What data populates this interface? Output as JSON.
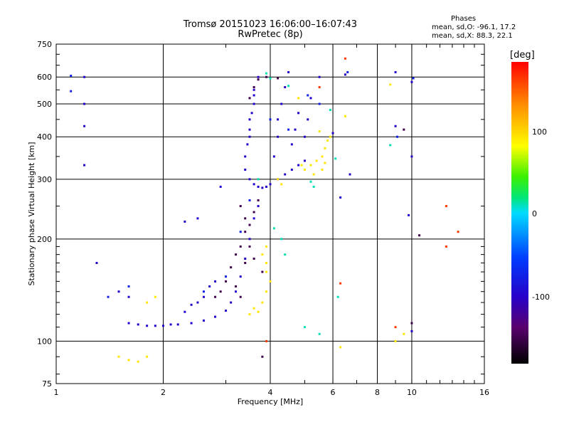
{
  "header": {
    "title": "Tromsø 20151023 16:06:00–16:07:43",
    "subtitle": "RwPretec (8p)",
    "phases_title": "Phases",
    "phases_o": "mean, sd,O: -96.1, 17.2",
    "phases_x": "mean, sd,X: 88.3, 22.1"
  },
  "chart_data": {
    "type": "scatter",
    "xlabel": "Frequency [MHz]",
    "ylabel": "Stationary phase Virtual Height [km]",
    "xscale": "log",
    "yscale": "log",
    "xlim": [
      1,
      16
    ],
    "ylim": [
      75,
      750
    ],
    "xticks": [
      1,
      2,
      4,
      6,
      8,
      10,
      16
    ],
    "yticks": [
      75,
      100,
      200,
      300,
      400,
      500,
      600,
      750
    ],
    "grid": true,
    "colorbar": {
      "title": "[deg]",
      "range": [
        -180,
        180
      ],
      "ticks": [
        100,
        0,
        -100
      ]
    },
    "series": [
      {
        "phase": -100,
        "points": [
          [
            1.6,
            113
          ],
          [
            1.7,
            112
          ],
          [
            1.8,
            111
          ],
          [
            1.9,
            111
          ],
          [
            2.0,
            111
          ],
          [
            2.1,
            112
          ],
          [
            2.2,
            112
          ],
          [
            2.4,
            113
          ],
          [
            2.6,
            115
          ],
          [
            2.8,
            118
          ],
          [
            3.0,
            123
          ],
          [
            3.1,
            130
          ],
          [
            3.2,
            140
          ],
          [
            3.3,
            155
          ],
          [
            3.4,
            175
          ],
          [
            3.5,
            200
          ],
          [
            3.6,
            230
          ],
          [
            3.7,
            250
          ],
          [
            2.5,
            130
          ],
          [
            2.6,
            135
          ],
          [
            2.7,
            145
          ],
          [
            2.8,
            150
          ],
          [
            2.3,
            122
          ],
          [
            2.4,
            128
          ],
          [
            1.5,
            140
          ],
          [
            1.6,
            135
          ],
          [
            1.2,
            600
          ],
          [
            1.2,
            500
          ],
          [
            1.2,
            430
          ],
          [
            1.2,
            330
          ],
          [
            1.3,
            170
          ],
          [
            2.3,
            225
          ],
          [
            2.5,
            230
          ],
          [
            2.9,
            285
          ],
          [
            3.5,
            300
          ],
          [
            3.6,
            290
          ],
          [
            3.7,
            285
          ],
          [
            3.8,
            283
          ],
          [
            3.9,
            285
          ],
          [
            4.0,
            290
          ],
          [
            4.2,
            300
          ],
          [
            4.4,
            310
          ],
          [
            4.6,
            320
          ],
          [
            4.8,
            330
          ],
          [
            5.0,
            340
          ],
          [
            3.4,
            350
          ],
          [
            3.5,
            400
          ],
          [
            3.5,
            450
          ],
          [
            3.6,
            500
          ],
          [
            3.6,
            550
          ],
          [
            3.7,
            600
          ],
          [
            3.4,
            320
          ],
          [
            3.45,
            380
          ],
          [
            3.5,
            420
          ],
          [
            3.55,
            470
          ],
          [
            3.6,
            530
          ],
          [
            4.1,
            350
          ],
          [
            4.2,
            400
          ],
          [
            4.2,
            450
          ],
          [
            4.3,
            500
          ],
          [
            4.4,
            560
          ],
          [
            4.5,
            620
          ],
          [
            4.6,
            380
          ],
          [
            4.7,
            420
          ],
          [
            4.8,
            470
          ],
          [
            5.0,
            400
          ],
          [
            5.1,
            450
          ],
          [
            5.2,
            520
          ],
          [
            5.5,
            600
          ],
          [
            6.5,
            610
          ],
          [
            9.0,
            430
          ],
          [
            9.0,
            620
          ],
          [
            10.0,
            580
          ],
          [
            10.0,
            350
          ],
          [
            9.8,
            235
          ],
          [
            10.0,
            107
          ],
          [
            6.0,
            410
          ],
          [
            6.3,
            265
          ],
          [
            6.7,
            310
          ]
        ]
      },
      {
        "phase": -150,
        "points": [
          [
            3.2,
            180
          ],
          [
            3.3,
            190
          ],
          [
            3.4,
            210
          ],
          [
            3.5,
            220
          ],
          [
            3.6,
            240
          ],
          [
            3.7,
            260
          ],
          [
            3.3,
            250
          ],
          [
            3.4,
            230
          ],
          [
            3.5,
            190
          ],
          [
            3.6,
            175
          ],
          [
            3.1,
            165
          ],
          [
            3.0,
            150
          ],
          [
            2.9,
            140
          ],
          [
            2.8,
            135
          ],
          [
            3.8,
            160
          ],
          [
            3.4,
            170
          ],
          [
            3.3,
            135
          ],
          [
            3.2,
            145
          ],
          [
            3.7,
            590
          ],
          [
            3.6,
            560
          ],
          [
            3.5,
            520
          ],
          [
            3.9,
            600
          ],
          [
            4.2,
            595
          ],
          [
            3.8,
            90
          ],
          [
            10.5,
            205
          ],
          [
            10.0,
            113
          ],
          [
            9.5,
            420
          ]
        ]
      },
      {
        "phase": 90,
        "points": [
          [
            3.5,
            120
          ],
          [
            3.6,
            125
          ],
          [
            3.7,
            122
          ],
          [
            3.8,
            130
          ],
          [
            3.9,
            140
          ],
          [
            4.0,
            150
          ],
          [
            3.9,
            160
          ],
          [
            3.9,
            170
          ],
          [
            3.8,
            180
          ],
          [
            3.9,
            190
          ],
          [
            4.9,
            330
          ],
          [
            5.0,
            320
          ],
          [
            5.2,
            330
          ],
          [
            5.4,
            340
          ],
          [
            5.6,
            350
          ],
          [
            5.7,
            370
          ],
          [
            5.8,
            390
          ],
          [
            5.9,
            400
          ],
          [
            5.6,
            320
          ],
          [
            5.3,
            310
          ],
          [
            5.7,
            335
          ],
          [
            1.5,
            90
          ],
          [
            1.6,
            88
          ],
          [
            1.8,
            90
          ],
          [
            1.7,
            87
          ],
          [
            1.9,
            135
          ],
          [
            1.8,
            130
          ],
          [
            6.5,
            460
          ],
          [
            6.3,
            96
          ],
          [
            9.0,
            100
          ],
          [
            9.5,
            105
          ],
          [
            8.7,
            570
          ],
          [
            4.2,
            300
          ],
          [
            4.3,
            290
          ],
          [
            4.8,
            520
          ],
          [
            5.5,
            415
          ]
        ]
      },
      {
        "phase": 10,
        "points": [
          [
            4.1,
            215
          ],
          [
            4.3,
            200
          ],
          [
            4.4,
            180
          ],
          [
            3.9,
            615
          ],
          [
            3.7,
            300
          ],
          [
            5.0,
            110
          ],
          [
            5.5,
            105
          ],
          [
            5.2,
            295
          ],
          [
            5.3,
            285
          ],
          [
            6.1,
            345
          ],
          [
            4.5,
            565
          ],
          [
            6.2,
            135
          ],
          [
            8.7,
            378
          ],
          [
            4.0,
            595
          ],
          [
            5.9,
            480
          ]
        ]
      },
      {
        "phase": 160,
        "points": [
          [
            12.5,
            250
          ],
          [
            12.5,
            190
          ],
          [
            13.5,
            210
          ],
          [
            6.5,
            680
          ],
          [
            9.0,
            110
          ],
          [
            3.9,
            100
          ],
          [
            6.3,
            148
          ],
          [
            5.5,
            560
          ]
        ]
      },
      {
        "phase": -75,
        "points": [
          [
            1.1,
            605
          ],
          [
            1.1,
            545
          ],
          [
            1.4,
            135
          ],
          [
            1.6,
            145
          ],
          [
            2.6,
            140
          ],
          [
            3.0,
            155
          ],
          [
            3.3,
            210
          ],
          [
            3.5,
            260
          ],
          [
            4.0,
            450
          ],
          [
            4.5,
            420
          ],
          [
            5.1,
            530
          ],
          [
            5.5,
            500
          ],
          [
            6.6,
            620
          ],
          [
            9.1,
            400
          ],
          [
            10.1,
            595
          ]
        ]
      }
    ]
  }
}
